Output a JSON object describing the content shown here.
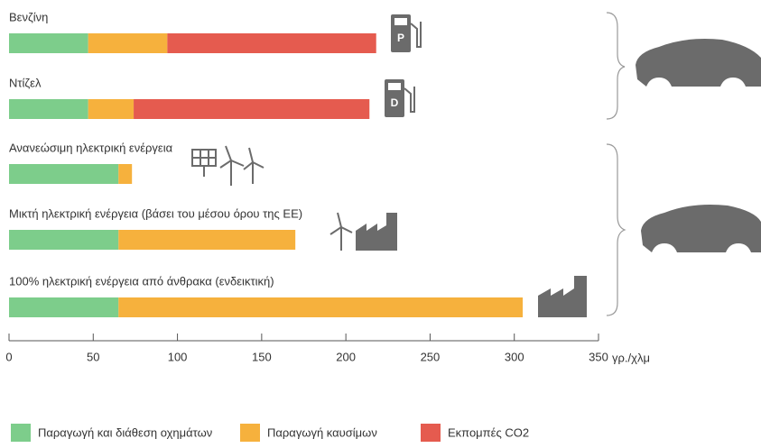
{
  "chart_data": {
    "type": "bar",
    "orientation": "horizontal",
    "stacked": true,
    "categories": [
      "Βενζίνη",
      "Ντίζελ",
      "Ανανεώσιμη ηλεκτρική ενέργεια",
      "Μικτή ηλεκτρική ενέργεια (βάσει του μέσου όρου της ΕΕ)",
      "100% ηλεκτρική ενέργεια από άνθρακα (ενδεικτική)"
    ],
    "series": [
      {
        "name": "Παραγωγή και διάθεση οχημάτων",
        "color": "#7dcd8b",
        "values": [
          47,
          47,
          65,
          65,
          65
        ]
      },
      {
        "name": "Παραγωγή καυσίμων",
        "color": "#f6b13d",
        "values": [
          47,
          27,
          8,
          105,
          240
        ]
      },
      {
        "name": "Εκπομπές CO2",
        "color": "#e55b4f",
        "values": [
          124,
          140,
          0,
          0,
          0
        ]
      }
    ],
    "xlim": [
      0,
      350
    ],
    "xticks": [
      0,
      50,
      100,
      150,
      200,
      250,
      300,
      350
    ],
    "x_label": "γρ./χλμ",
    "legend": "bottom",
    "pump_labels": [
      "P",
      "D"
    ]
  }
}
